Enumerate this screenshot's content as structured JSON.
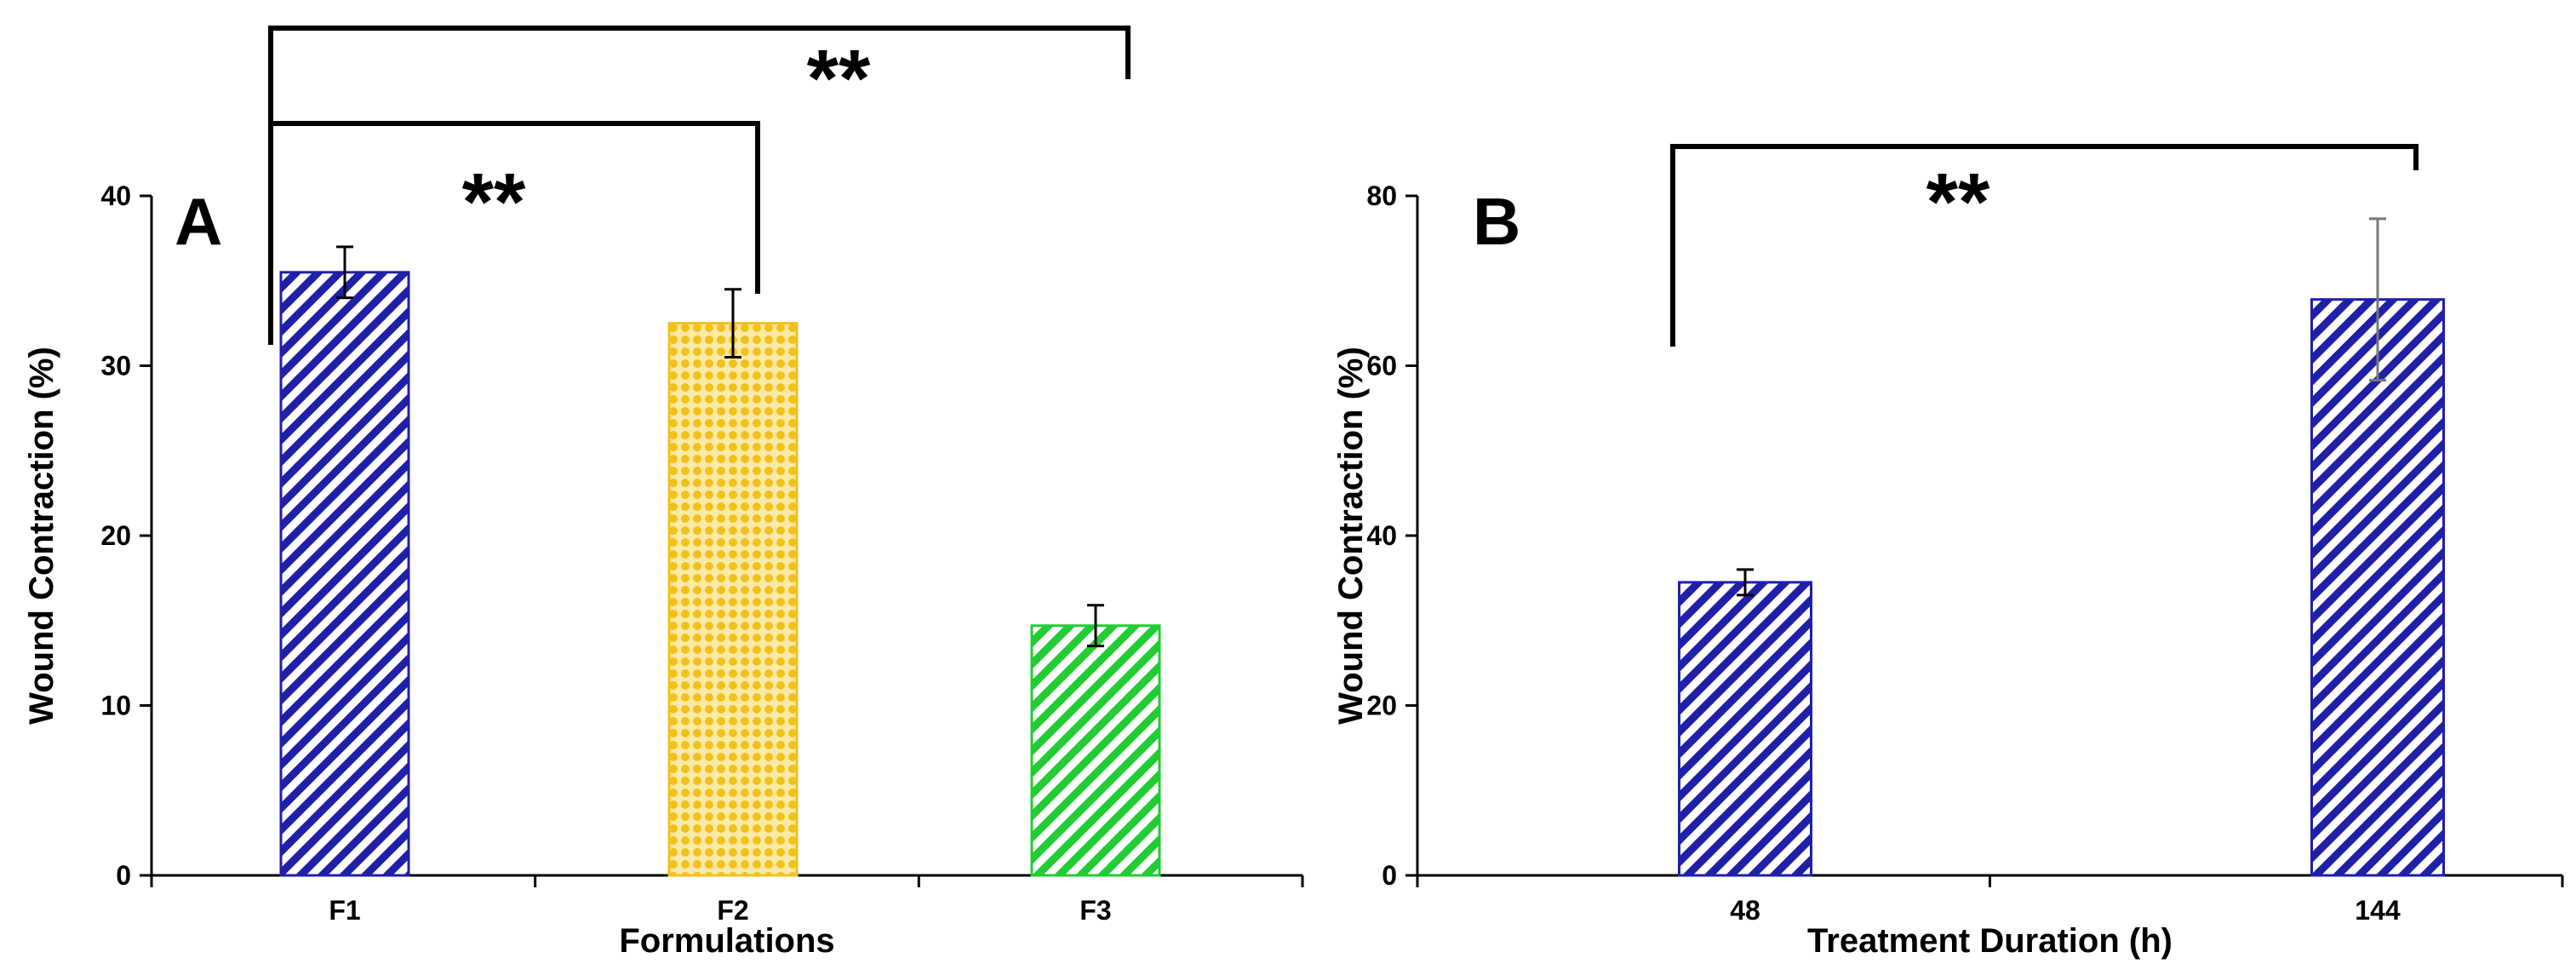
{
  "chart_data": [
    {
      "panel": "A",
      "type": "bar",
      "xlabel": "Formulations",
      "ylabel": "Wound Contraction (%)",
      "ylim": [
        0,
        40
      ],
      "yticks": [
        0,
        10,
        20,
        30,
        40
      ],
      "categories": [
        "F1",
        "F2",
        "F3"
      ],
      "values": [
        35.5,
        32.5,
        14.7
      ],
      "errors": [
        1.5,
        2.0,
        1.2
      ],
      "patterns": [
        "diagonal-stripes",
        "dots",
        "diagonal-stripes"
      ],
      "colors": [
        "#1f1fa8",
        "#f2c11a",
        "#22cc33"
      ],
      "significance": [
        {
          "from": "F1",
          "to": "F2",
          "label": "**"
        },
        {
          "from": "F1",
          "to": "F3",
          "label": "**"
        }
      ]
    },
    {
      "panel": "B",
      "type": "bar",
      "xlabel": "Treatment Duration (h)",
      "ylabel": "Wound Contraction (%)",
      "ylim": [
        0,
        80
      ],
      "yticks": [
        0,
        20,
        40,
        60,
        80
      ],
      "categories": [
        "48",
        "144"
      ],
      "values": [
        34.5,
        67.8
      ],
      "errors": [
        1.5,
        9.5
      ],
      "patterns": [
        "diagonal-stripes",
        "diagonal-stripes"
      ],
      "colors": [
        "#1f1fa8",
        "#1f1fa8"
      ],
      "significance": [
        {
          "from": "48",
          "to": "144",
          "label": "**"
        }
      ]
    }
  ]
}
